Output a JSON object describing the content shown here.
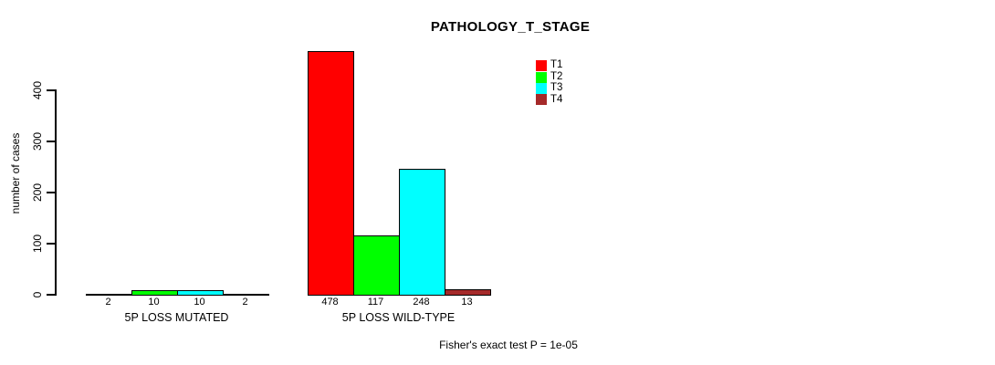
{
  "chart_data": {
    "type": "bar",
    "title": "PATHOLOGY_T_STAGE",
    "ylabel": "number of cases",
    "xlabel": "",
    "annotation": "Fisher's exact test P = 1e-05",
    "ylim": [
      0,
      480
    ],
    "yticks": [
      0,
      100,
      200,
      300,
      400
    ],
    "grid": false,
    "legend_position": "top-right",
    "bar_value_labels": true,
    "series": [
      {
        "name": "T1",
        "color": "#FF0000"
      },
      {
        "name": "T2",
        "color": "#00FF00"
      },
      {
        "name": "T3",
        "color": "#00FFFF"
      },
      {
        "name": "T4",
        "color": "#A52A2A"
      }
    ],
    "groups": [
      {
        "label": "5P LOSS MUTATED",
        "values": [
          2,
          10,
          10,
          2
        ]
      },
      {
        "label": "5P LOSS WILD-TYPE",
        "values": [
          478,
          117,
          248,
          13
        ]
      }
    ]
  }
}
